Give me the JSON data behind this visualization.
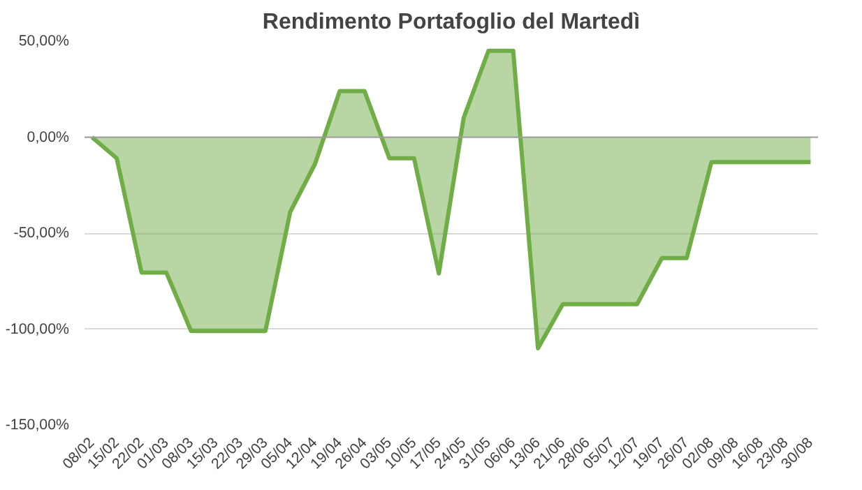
{
  "chart_data": {
    "type": "area",
    "title": "Rendimento Portafoglio del Martedì",
    "categories": [
      "08/02",
      "15/02",
      "22/02",
      "01/03",
      "08/03",
      "15/03",
      "22/03",
      "29/03",
      "05/04",
      "12/04",
      "19/04",
      "26/04",
      "03/05",
      "10/05",
      "17/05",
      "24/05",
      "31/05",
      "06/06",
      "13/06",
      "21/06",
      "28/06",
      "05/07",
      "12/07",
      "19/07",
      "26/07",
      "02/08",
      "09/08",
      "16/08",
      "23/08",
      "30/08"
    ],
    "series": [
      {
        "color": "#70ad47",
        "values": [
          0,
          -11,
          -70.5,
          -70.5,
          -101,
          -101,
          -101,
          -101,
          -39,
          -14,
          24,
          24,
          -11,
          -11,
          -71,
          10,
          45,
          45,
          -110,
          -87,
          -87,
          -87,
          -87,
          -63,
          -63,
          -13,
          -13,
          -13,
          -13,
          -13
        ]
      }
    ],
    "ylim": [
      -150,
      50
    ],
    "yticks": [
      {
        "value": -150,
        "label": "-150,00%"
      },
      {
        "value": -100,
        "label": "-100,00%"
      },
      {
        "value": -50,
        "label": "-50,00%"
      },
      {
        "value": 0,
        "label": "0,00%"
      },
      {
        "value": 50,
        "label": "50,00%"
      }
    ],
    "grid": "y"
  }
}
